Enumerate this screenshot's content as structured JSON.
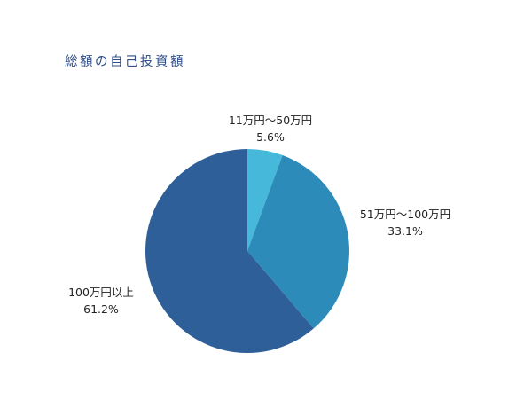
{
  "chart_data": {
    "type": "pie",
    "title": "総額の自己投資額",
    "start_angle_deg": 0,
    "direction": "clockwise",
    "slices": [
      {
        "label": "11万円〜50万円",
        "value": 5.6,
        "value_label": "5.6%",
        "color": "#46b8d9"
      },
      {
        "label": "51万円〜100万円",
        "value": 33.1,
        "value_label": "33.1%",
        "color": "#2d8bba"
      },
      {
        "label": "100万円以上",
        "value": 61.2,
        "value_label": "61.2%",
        "color": "#2f5f98"
      }
    ]
  }
}
